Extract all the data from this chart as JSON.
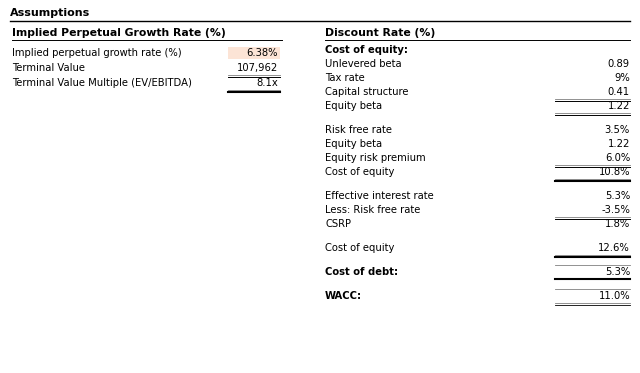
{
  "title": "Assumptions",
  "left_section_header": "Implied Perpetual Growth Rate (%)",
  "left_rows": [
    {
      "label": "Implied perpetual growth rate (%)",
      "value": "6.38%",
      "highlight": true,
      "underline": false,
      "bold_underline": false
    },
    {
      "label": "Terminal Value",
      "value": "107,962",
      "highlight": false,
      "underline": true,
      "bold_underline": false
    },
    {
      "label": "Terminal Value Multiple (EV/EBITDA)",
      "value": "8.1x",
      "highlight": false,
      "underline": true,
      "bold_underline": true
    }
  ],
  "right_section_header": "Discount Rate (%)",
  "right_groups": [
    {
      "group_label": "Cost of equity:",
      "bold_label": true,
      "rows": [
        {
          "label": "Unlevered beta",
          "value": "0.89",
          "underline": false,
          "bold_underline": false
        },
        {
          "label": "Tax rate",
          "value": "9%",
          "underline": false,
          "bold_underline": false
        },
        {
          "label": "Capital structure",
          "value": "0.41",
          "underline": true,
          "bold_underline": false
        },
        {
          "label": "Equity beta",
          "value": "1.22",
          "underline": true,
          "bold_underline": false
        }
      ]
    },
    {
      "group_label": null,
      "bold_label": false,
      "rows": [
        {
          "label": "Risk free rate",
          "value": "3.5%",
          "underline": false,
          "bold_underline": false
        },
        {
          "label": "Equity beta",
          "value": "1.22",
          "underline": false,
          "bold_underline": false
        },
        {
          "label": "Equity risk premium",
          "value": "6.0%",
          "underline": true,
          "bold_underline": false
        },
        {
          "label": "Cost of equity",
          "value": "10.8%",
          "underline": true,
          "bold_underline": true
        }
      ]
    },
    {
      "group_label": null,
      "bold_label": false,
      "rows": [
        {
          "label": "Effective interest rate",
          "value": "5.3%",
          "underline": false,
          "bold_underline": false
        },
        {
          "label": "Less: Risk free rate",
          "value": "-3.5%",
          "underline": true,
          "bold_underline": false
        },
        {
          "label": "CSRP",
          "value": "1.8%",
          "underline": false,
          "bold_underline": false
        }
      ]
    },
    {
      "group_label": null,
      "bold_label": false,
      "rows": [
        {
          "label": "Cost of equity",
          "value": "12.6%",
          "underline": true,
          "bold_underline": true
        }
      ]
    },
    {
      "group_label": "Cost of debt:",
      "bold_label": true,
      "rows": [
        {
          "label": null,
          "value": "5.3%",
          "underline": true,
          "bold_underline": true
        }
      ]
    },
    {
      "group_label": "WACC:",
      "bold_label": true,
      "rows": [
        {
          "label": null,
          "value": "11.0%",
          "underline": true,
          "bold_underline": false
        }
      ]
    }
  ],
  "bg_color": "#ffffff",
  "highlight_color": "#fce4d6",
  "text_color": "#000000",
  "line_color": "#000000",
  "gray_line_color": "#808080"
}
